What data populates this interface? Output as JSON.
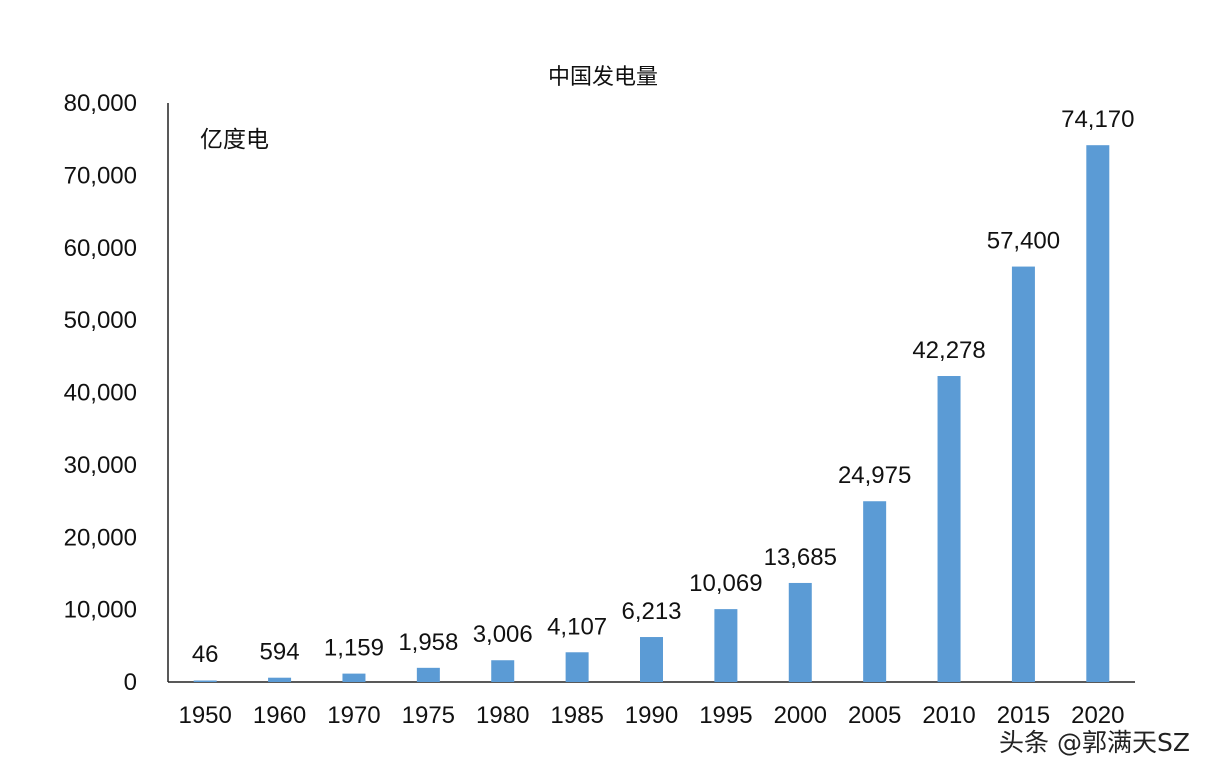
{
  "chart_data": {
    "type": "bar",
    "title": "中国发电量",
    "ylabel": "亿度电",
    "categories": [
      "1950",
      "1960",
      "1970",
      "1975",
      "1980",
      "1985",
      "1990",
      "1995",
      "2000",
      "2005",
      "2010",
      "2015",
      "2020"
    ],
    "values": [
      46,
      594,
      1159,
      1958,
      3006,
      4107,
      6213,
      10069,
      13685,
      24975,
      42278,
      57400,
      74170
    ],
    "value_labels": [
      "46",
      "594",
      "1,159",
      "1,958",
      "3,006",
      "4,107",
      "6,213",
      "10,069",
      "13,685",
      "24,975",
      "42,278",
      "57,400",
      "74,170"
    ],
    "ylim": [
      0,
      80000
    ],
    "yticks": [
      0,
      10000,
      20000,
      30000,
      40000,
      50000,
      60000,
      70000,
      80000
    ],
    "ytick_labels": [
      "0",
      "10,000",
      "20,000",
      "30,000",
      "40,000",
      "50,000",
      "60,000",
      "70,000",
      "80,000"
    ],
    "bar_color": "#5b9bd5",
    "grid": false,
    "legend": "none"
  },
  "watermark": "头条 @郭满天SZ"
}
